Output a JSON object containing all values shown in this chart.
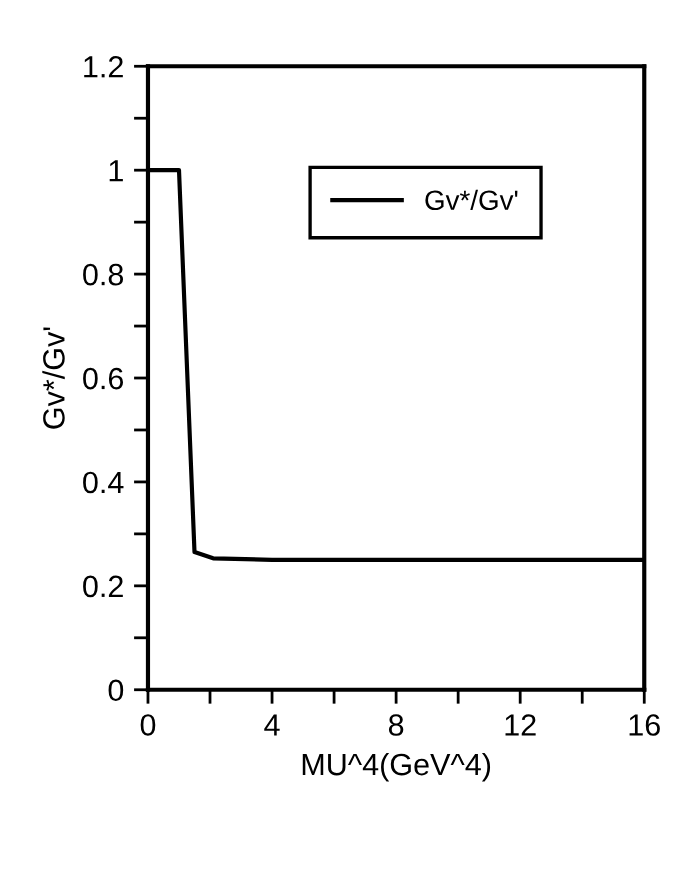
{
  "chart_data": {
    "type": "line",
    "xlabel": "MU^4(GeV^4)",
    "ylabel": "Gv*/Gv'",
    "x": [
      0,
      1,
      1.5,
      2.1,
      4,
      16
    ],
    "series": [
      {
        "name": "Gv*/Gv'",
        "color": "#000000",
        "values": [
          1,
          1,
          0.265,
          0.253,
          0.25,
          0.25
        ]
      }
    ],
    "xlim": [
      0,
      16
    ],
    "ylim": [
      0,
      1.2
    ],
    "xticks": [
      0,
      {
        "value": 2,
        "label": null
      },
      4,
      {
        "value": 6,
        "label": null
      },
      8,
      {
        "value": 10,
        "label": null
      },
      12,
      {
        "value": 14,
        "label": null
      },
      16
    ],
    "yticks": [
      0,
      {
        "value": 0.1,
        "label": null
      },
      0.2,
      {
        "value": 0.3,
        "label": null
      },
      0.4,
      {
        "value": 0.5,
        "label": null
      },
      0.6,
      {
        "value": 0.7,
        "label": null
      },
      0.8,
      {
        "value": 0.9,
        "label": null
      },
      1,
      {
        "value": 1.1,
        "label": null
      },
      1.2
    ],
    "grid": false,
    "legend": "top right",
    "marker": "none",
    "line_style": "solid"
  }
}
